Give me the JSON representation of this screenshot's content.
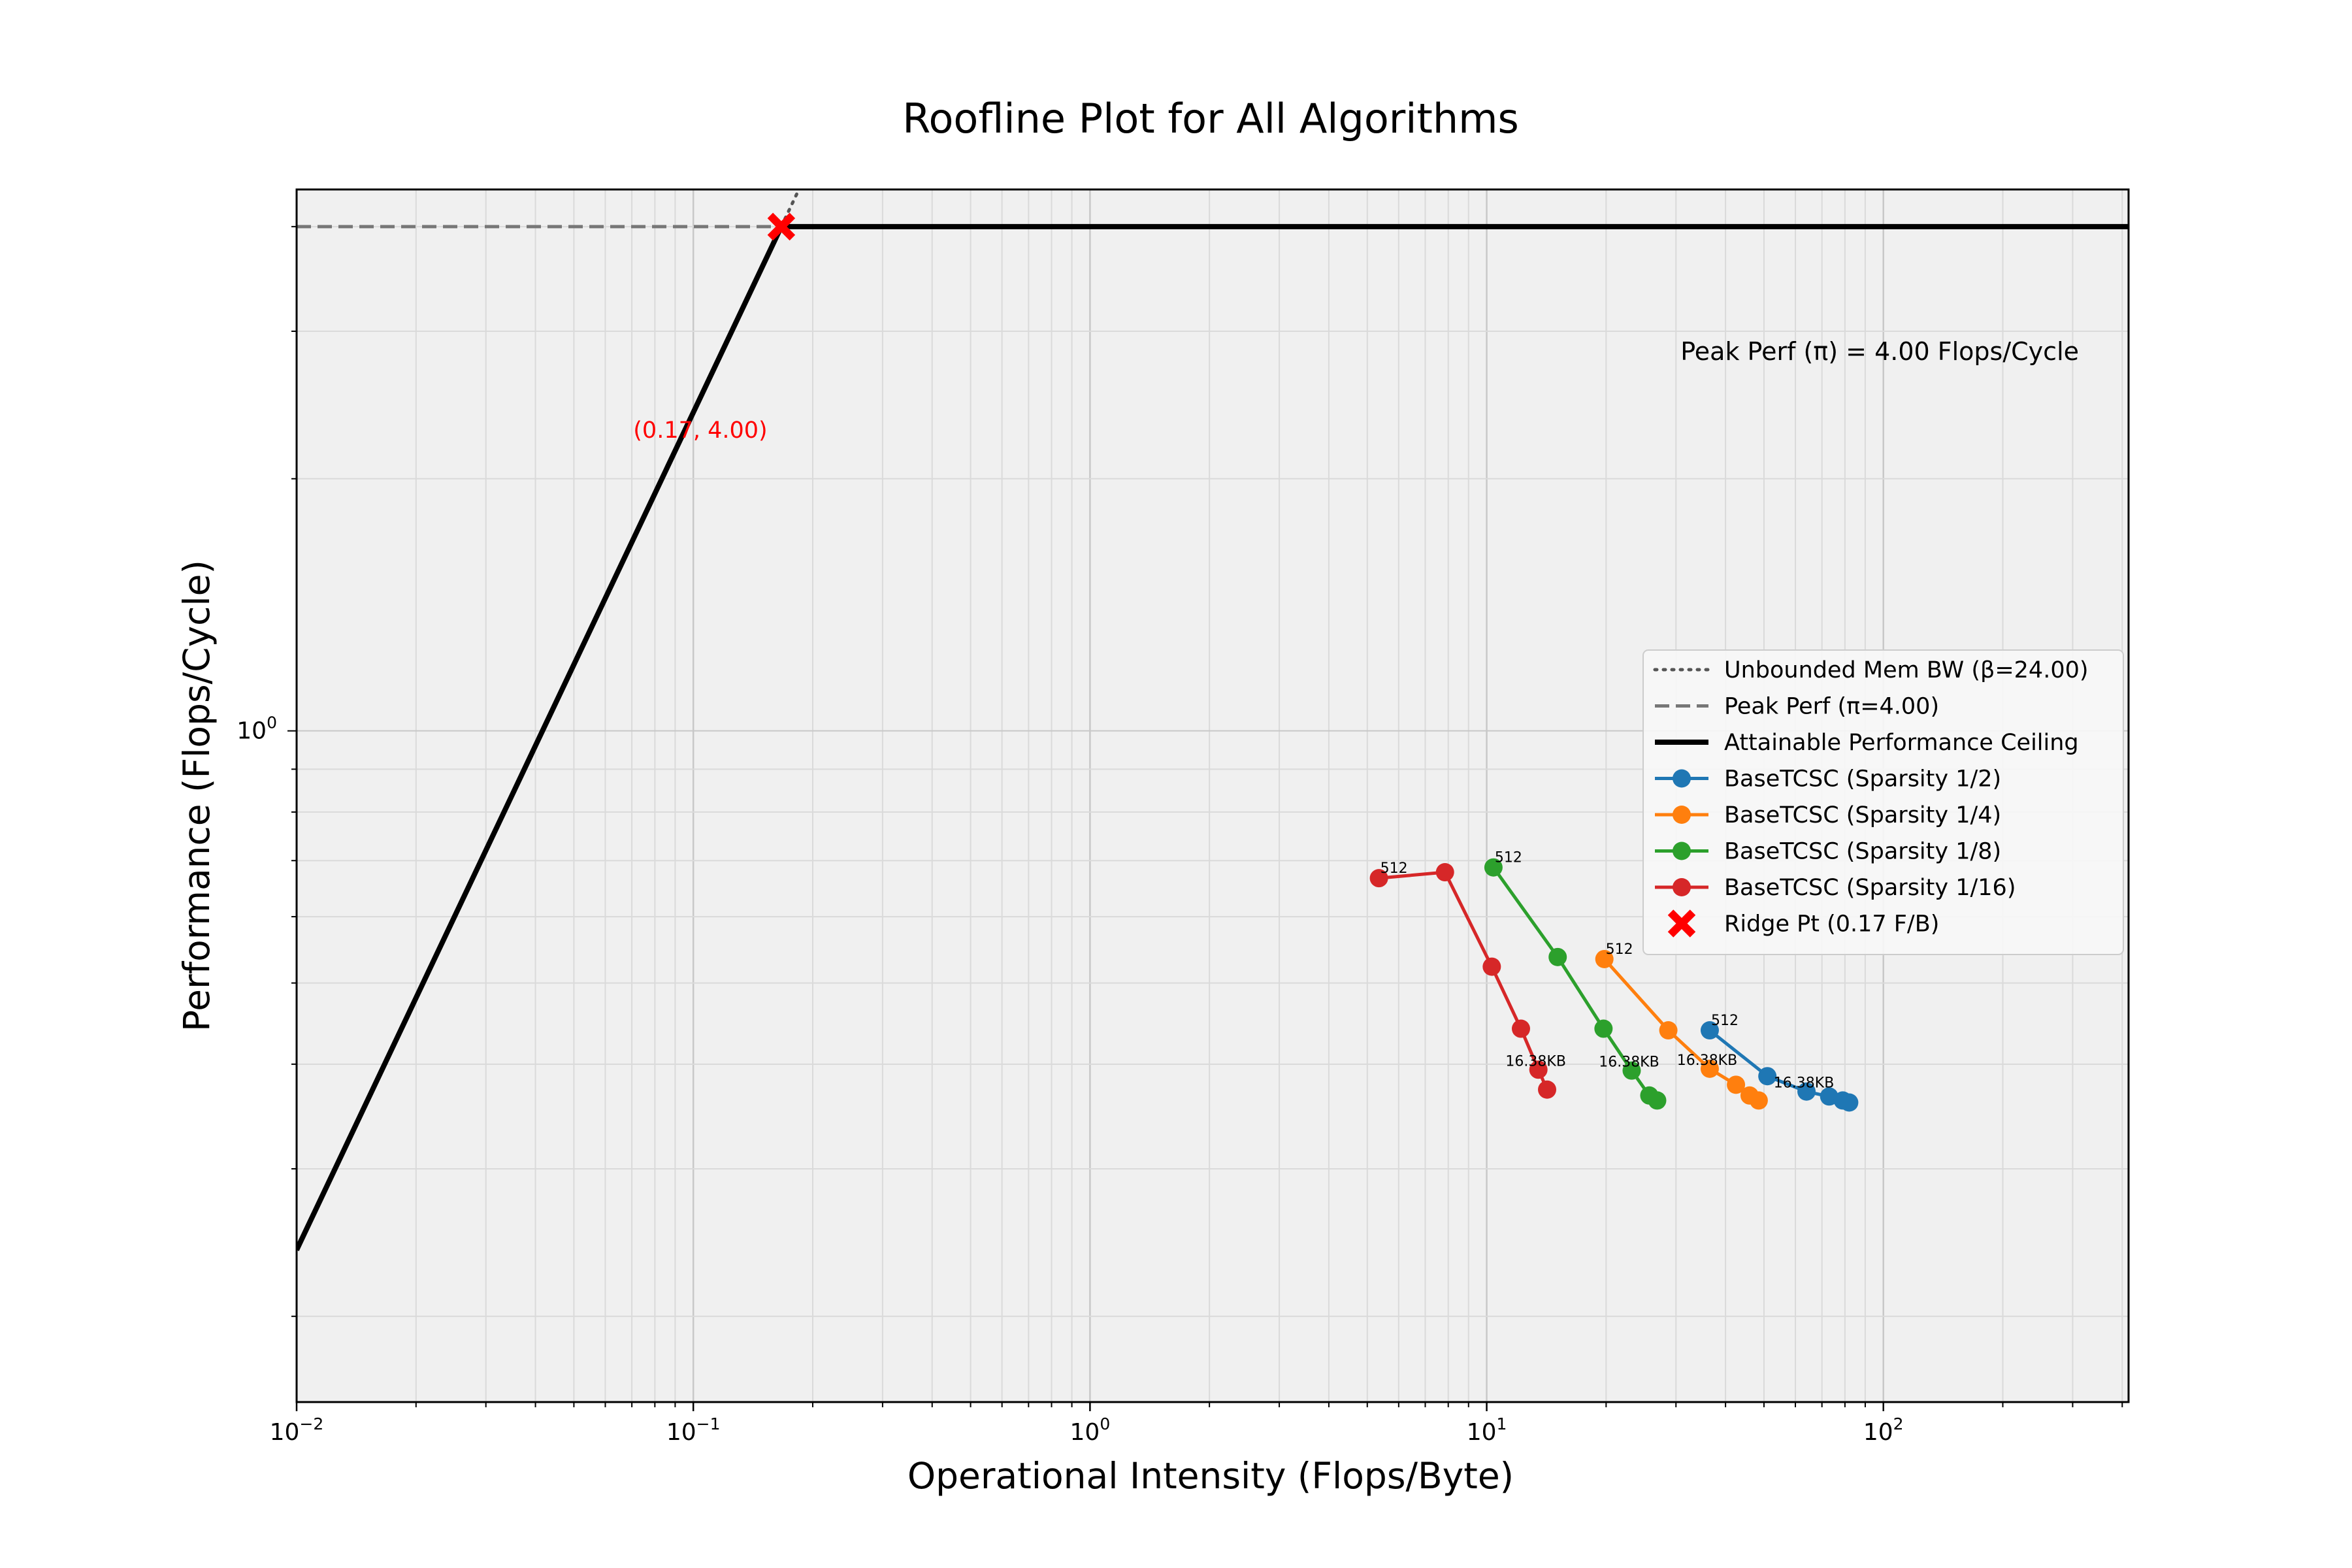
{
  "chart_data": {
    "type": "line",
    "title": "Roofline Plot for All Algorithms",
    "xlabel": "Operational Intensity (Flops/Byte)",
    "ylabel": "Performance (Flops/Cycle)",
    "xscale": "log",
    "yscale": "log",
    "xlim": [
      0.01,
      415
    ],
    "ylim": [
      0.158,
      4.43
    ],
    "grid": true,
    "legend_position": "center-right",
    "x_ticks": [
      {
        "value": 0.01,
        "base": "10",
        "exp": "−2"
      },
      {
        "value": 0.1,
        "base": "10",
        "exp": "−1"
      },
      {
        "value": 1,
        "base": "10",
        "exp": "0"
      },
      {
        "value": 10,
        "base": "10",
        "exp": "1"
      },
      {
        "value": 100,
        "base": "10",
        "exp": "2"
      }
    ],
    "y_ticks": [
      {
        "value": 1,
        "base": "10",
        "exp": "0"
      }
    ],
    "peak_performance": 4.0,
    "memory_bandwidth": 24.0,
    "peak_label": "Peak Perf (π) = 4.00 Flops/Cycle",
    "ridge_point": {
      "x": 0.17,
      "y": 4.0,
      "label": "(0.17, 4.00)"
    },
    "legend": [
      {
        "label": "Unbounded Mem BW (β=24.00)",
        "style": "dotted",
        "color": "#555555"
      },
      {
        "label": "Peak Perf (π=4.00)",
        "style": "dashed",
        "color": "#777777"
      },
      {
        "label": "Attainable Performance Ceiling",
        "style": "solid",
        "color": "#000000"
      },
      {
        "label": "BaseTCSC (Sparsity 1/2)",
        "style": "marker-line",
        "color": "#1f77b4"
      },
      {
        "label": "BaseTCSC (Sparsity 1/4)",
        "style": "marker-line",
        "color": "#ff7f0e"
      },
      {
        "label": "BaseTCSC (Sparsity 1/8)",
        "style": "marker-line",
        "color": "#2ca02c"
      },
      {
        "label": "BaseTCSC (Sparsity 1/16)",
        "style": "marker-line",
        "color": "#d62728"
      },
      {
        "label": "Ridge Pt (0.17 F/B)",
        "style": "x-marker",
        "color": "#ff0000"
      }
    ],
    "series": [
      {
        "name": "BaseTCSC (Sparsity 1/2)",
        "color": "#1f77b4",
        "x": [
          36.5,
          51.0,
          64.0,
          73.0,
          79.0,
          82.0
        ],
        "y": [
          0.439,
          0.387,
          0.371,
          0.366,
          0.362,
          0.36
        ],
        "first_label": "512",
        "size_label": "16.38KB",
        "size_label_index": 2
      },
      {
        "name": "BaseTCSC (Sparsity 1/4)",
        "color": "#ff7f0e",
        "x": [
          19.8,
          28.7,
          36.5,
          42.5,
          46.0,
          48.5
        ],
        "y": [
          0.534,
          0.439,
          0.395,
          0.378,
          0.367,
          0.362
        ],
        "first_label": "512",
        "size_label": "16.38KB",
        "size_label_index": 2
      },
      {
        "name": "BaseTCSC (Sparsity 1/8)",
        "color": "#2ca02c",
        "x": [
          10.4,
          15.1,
          19.7,
          23.2,
          25.7,
          26.9
        ],
        "y": [
          0.687,
          0.537,
          0.441,
          0.393,
          0.367,
          0.362
        ],
        "first_label": "512",
        "size_label": "16.38KB",
        "size_label_index": 3
      },
      {
        "name": "BaseTCSC (Sparsity 1/16)",
        "color": "#d62728",
        "x": [
          5.35,
          7.85,
          10.3,
          12.2,
          13.5,
          14.2
        ],
        "y": [
          0.667,
          0.678,
          0.523,
          0.441,
          0.394,
          0.373
        ],
        "first_label": "512",
        "size_label": "16.38KB",
        "size_label_index": 4
      }
    ]
  }
}
